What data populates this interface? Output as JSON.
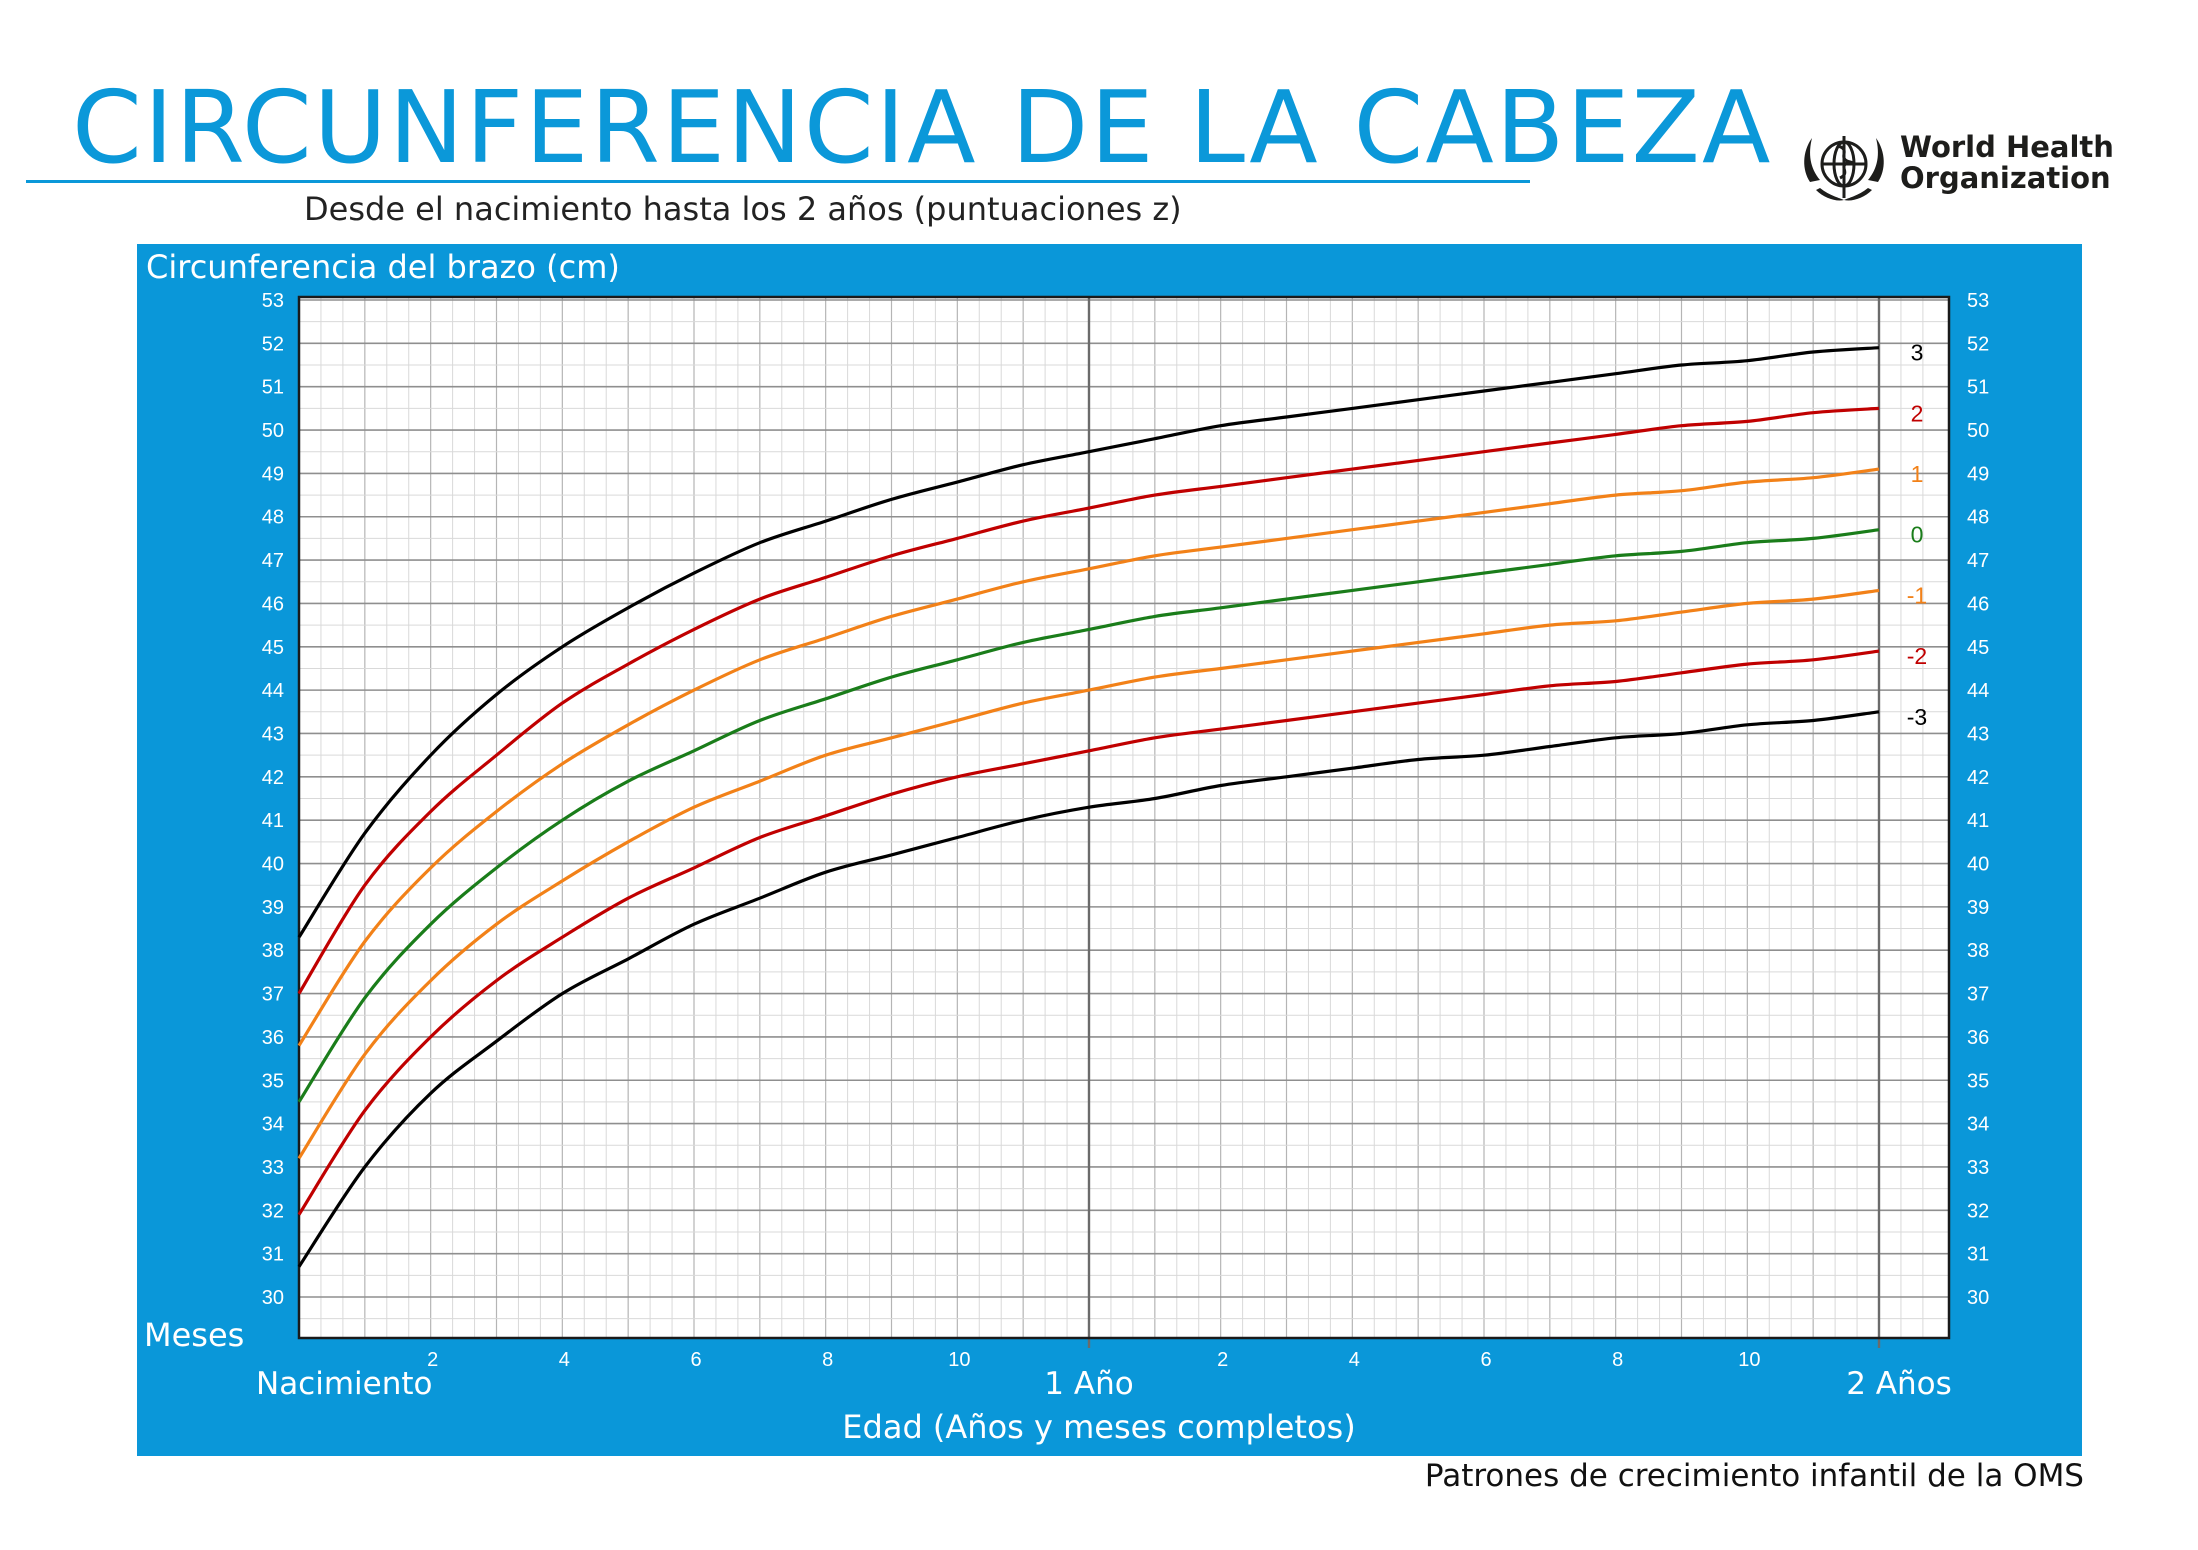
{
  "header": {
    "title": "CIRCUNFERENCIA DE LA CABEZA",
    "subtitle": "Desde el nacimiento hasta los 2 años (puntuaciones z)",
    "logo_line1": "World Health",
    "logo_line2": "Organization",
    "logo_icon": "who-emblem-icon"
  },
  "footer": "Patrones de crecimiento infantil de la OMS",
  "colors": {
    "panel": "#0a97d9",
    "title": "#0b98d9",
    "z_3": "#000000",
    "z_2": "#c00000",
    "z_1": "#f28118",
    "z_0": "#1a7d1a"
  },
  "chart_data": {
    "type": "line",
    "ylabel": "Circunferencia del brazo (cm)",
    "xlabel": "Edad (Años y meses completos)",
    "x_unit_label": "Meses",
    "ylim": [
      30,
      53
    ],
    "xlim": [
      0,
      25
    ],
    "y_ticks": [
      30,
      31,
      32,
      33,
      34,
      35,
      36,
      37,
      38,
      39,
      40,
      41,
      42,
      43,
      44,
      45,
      46,
      47,
      48,
      49,
      50,
      51,
      52,
      53
    ],
    "x_minor_tick_labels": [
      {
        "x": 2,
        "label": "2"
      },
      {
        "x": 4,
        "label": "4"
      },
      {
        "x": 6,
        "label": "6"
      },
      {
        "x": 8,
        "label": "8"
      },
      {
        "x": 10,
        "label": "10"
      },
      {
        "x": 14,
        "label": "2"
      },
      {
        "x": 16,
        "label": "4"
      },
      {
        "x": 18,
        "label": "6"
      },
      {
        "x": 20,
        "label": "8"
      },
      {
        "x": 22,
        "label": "10"
      }
    ],
    "x_major_labels": [
      {
        "x": 0,
        "label": "Nacimiento"
      },
      {
        "x": 12,
        "label": "1 Año"
      },
      {
        "x": 24,
        "label": "2  Años"
      }
    ],
    "grid": true,
    "x": [
      0,
      1,
      2,
      3,
      4,
      5,
      6,
      7,
      8,
      9,
      10,
      11,
      12,
      13,
      14,
      15,
      16,
      17,
      18,
      19,
      20,
      21,
      22,
      23,
      24
    ],
    "series": [
      {
        "name": "3",
        "color": "#000000",
        "values": [
          38.3,
          40.7,
          42.5,
          43.9,
          45.0,
          45.9,
          46.7,
          47.4,
          47.9,
          48.4,
          48.8,
          49.2,
          49.5,
          49.8,
          50.1,
          50.3,
          50.5,
          50.7,
          50.9,
          51.1,
          51.3,
          51.5,
          51.6,
          51.8,
          51.9
        ]
      },
      {
        "name": "2",
        "color": "#c00000",
        "values": [
          37.0,
          39.5,
          41.2,
          42.5,
          43.7,
          44.6,
          45.4,
          46.1,
          46.6,
          47.1,
          47.5,
          47.9,
          48.2,
          48.5,
          48.7,
          48.9,
          49.1,
          49.3,
          49.5,
          49.7,
          49.9,
          50.1,
          50.2,
          50.4,
          50.5
        ]
      },
      {
        "name": "1",
        "color": "#f28118",
        "values": [
          35.8,
          38.2,
          39.9,
          41.2,
          42.3,
          43.2,
          44.0,
          44.7,
          45.2,
          45.7,
          46.1,
          46.5,
          46.8,
          47.1,
          47.3,
          47.5,
          47.7,
          47.9,
          48.1,
          48.3,
          48.5,
          48.6,
          48.8,
          48.9,
          49.1
        ]
      },
      {
        "name": "0",
        "color": "#1a7d1a",
        "values": [
          34.5,
          36.9,
          38.6,
          39.9,
          41.0,
          41.9,
          42.6,
          43.3,
          43.8,
          44.3,
          44.7,
          45.1,
          45.4,
          45.7,
          45.9,
          46.1,
          46.3,
          46.5,
          46.7,
          46.9,
          47.1,
          47.2,
          47.4,
          47.5,
          47.7
        ]
      },
      {
        "name": "-1",
        "color": "#f28118",
        "values": [
          33.2,
          35.6,
          37.3,
          38.6,
          39.6,
          40.5,
          41.3,
          41.9,
          42.5,
          42.9,
          43.3,
          43.7,
          44.0,
          44.3,
          44.5,
          44.7,
          44.9,
          45.1,
          45.3,
          45.5,
          45.6,
          45.8,
          46.0,
          46.1,
          46.3
        ]
      },
      {
        "name": "-2",
        "color": "#c00000",
        "values": [
          31.9,
          34.3,
          36.0,
          37.3,
          38.3,
          39.2,
          39.9,
          40.6,
          41.1,
          41.6,
          42.0,
          42.3,
          42.6,
          42.9,
          43.1,
          43.3,
          43.5,
          43.7,
          43.9,
          44.1,
          44.2,
          44.4,
          44.6,
          44.7,
          44.9
        ]
      },
      {
        "name": "-3",
        "color": "#000000",
        "values": [
          30.7,
          33.0,
          34.7,
          35.9,
          37.0,
          37.8,
          38.6,
          39.2,
          39.8,
          40.2,
          40.6,
          41.0,
          41.3,
          41.5,
          41.8,
          42.0,
          42.2,
          42.4,
          42.5,
          42.7,
          42.9,
          43.0,
          43.2,
          43.3,
          43.5
        ]
      }
    ]
  }
}
